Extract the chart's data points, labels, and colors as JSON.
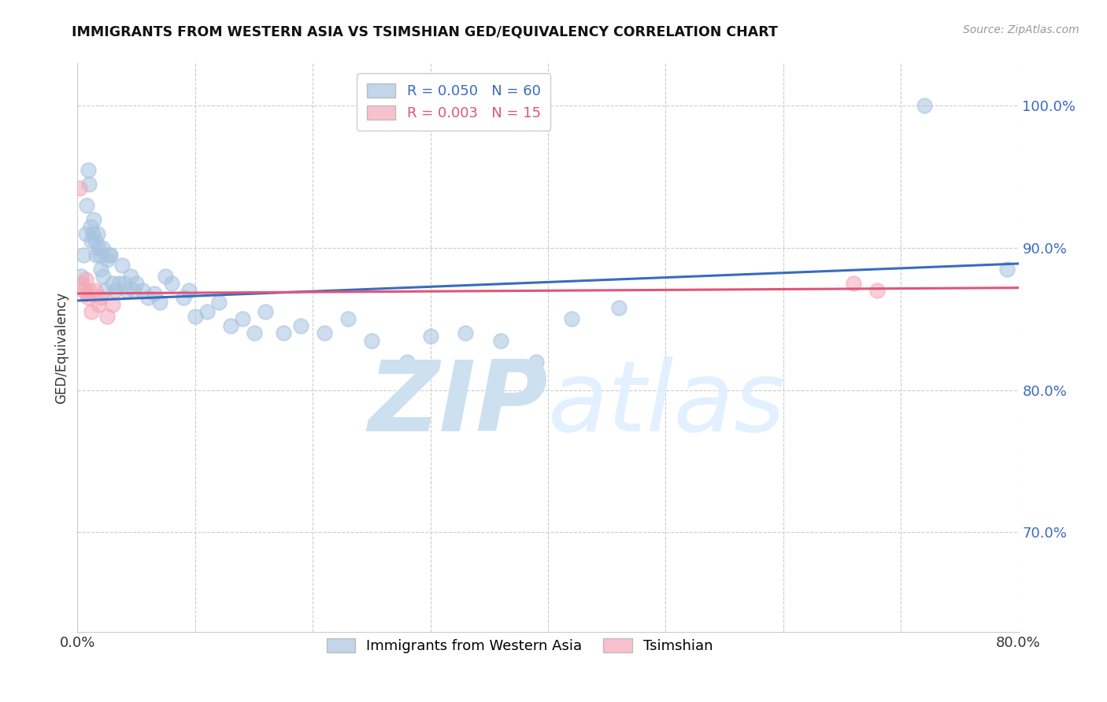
{
  "title": "IMMIGRANTS FROM WESTERN ASIA VS TSIMSHIAN GED/EQUIVALENCY CORRELATION CHART",
  "source": "Source: ZipAtlas.com",
  "ylabel": "GED/Equivalency",
  "legend_bottom": [
    "Immigrants from Western Asia",
    "Tsimshian"
  ],
  "blue_label": "R = 0.050   N = 60",
  "pink_label": "R = 0.003   N = 15",
  "xlim": [
    0.0,
    0.8
  ],
  "ylim": [
    0.63,
    1.03
  ],
  "yticks": [
    0.7,
    0.8,
    0.9,
    1.0
  ],
  "ytick_labels": [
    "70.0%",
    "80.0%",
    "90.0%",
    "100.0%"
  ],
  "xticks": [
    0.0,
    0.1,
    0.2,
    0.3,
    0.4,
    0.5,
    0.6,
    0.7,
    0.8
  ],
  "xtick_labels": [
    "0.0%",
    "",
    "",
    "",
    "",
    "",
    "",
    "",
    "80.0%"
  ],
  "blue_color": "#a8c4e0",
  "pink_color": "#f4a8b8",
  "trend_blue": "#3a6bbf",
  "trend_pink": "#e05578",
  "blue_x": [
    0.003,
    0.005,
    0.007,
    0.008,
    0.009,
    0.01,
    0.011,
    0.012,
    0.013,
    0.014,
    0.015,
    0.016,
    0.017,
    0.018,
    0.019,
    0.02,
    0.021,
    0.022,
    0.023,
    0.025,
    0.027,
    0.028,
    0.03,
    0.032,
    0.035,
    0.038,
    0.04,
    0.042,
    0.045,
    0.048,
    0.05,
    0.055,
    0.06,
    0.065,
    0.07,
    0.075,
    0.08,
    0.09,
    0.095,
    0.1,
    0.11,
    0.12,
    0.13,
    0.14,
    0.15,
    0.16,
    0.175,
    0.19,
    0.21,
    0.23,
    0.25,
    0.28,
    0.3,
    0.33,
    0.36,
    0.39,
    0.42,
    0.46,
    0.72,
    0.79
  ],
  "blue_y": [
    0.88,
    0.895,
    0.91,
    0.93,
    0.955,
    0.945,
    0.915,
    0.905,
    0.91,
    0.92,
    0.905,
    0.895,
    0.91,
    0.9,
    0.895,
    0.885,
    0.9,
    0.88,
    0.87,
    0.892,
    0.895,
    0.895,
    0.875,
    0.87,
    0.875,
    0.888,
    0.875,
    0.87,
    0.88,
    0.87,
    0.875,
    0.87,
    0.865,
    0.868,
    0.862,
    0.88,
    0.875,
    0.865,
    0.87,
    0.852,
    0.855,
    0.862,
    0.845,
    0.85,
    0.84,
    0.855,
    0.84,
    0.845,
    0.84,
    0.85,
    0.835,
    0.82,
    0.838,
    0.84,
    0.835,
    0.82,
    0.85,
    0.858,
    1.0,
    0.885
  ],
  "pink_x": [
    0.002,
    0.004,
    0.005,
    0.007,
    0.008,
    0.009,
    0.01,
    0.012,
    0.015,
    0.018,
    0.02,
    0.025,
    0.03,
    0.66,
    0.68
  ],
  "pink_y": [
    0.942,
    0.875,
    0.87,
    0.878,
    0.868,
    0.865,
    0.87,
    0.855,
    0.87,
    0.86,
    0.865,
    0.852,
    0.86,
    0.875,
    0.87
  ],
  "blue_trend_x": [
    0.0,
    0.8
  ],
  "blue_trend_y": [
    0.863,
    0.889
  ],
  "pink_trend_x": [
    0.0,
    0.8
  ],
  "pink_trend_y": [
    0.868,
    0.872
  ],
  "watermark_zip": "ZIP",
  "watermark_atlas": "atlas",
  "watermark_color": "#cce0f0",
  "background_color": "#ffffff",
  "grid_color": "#cccccc"
}
